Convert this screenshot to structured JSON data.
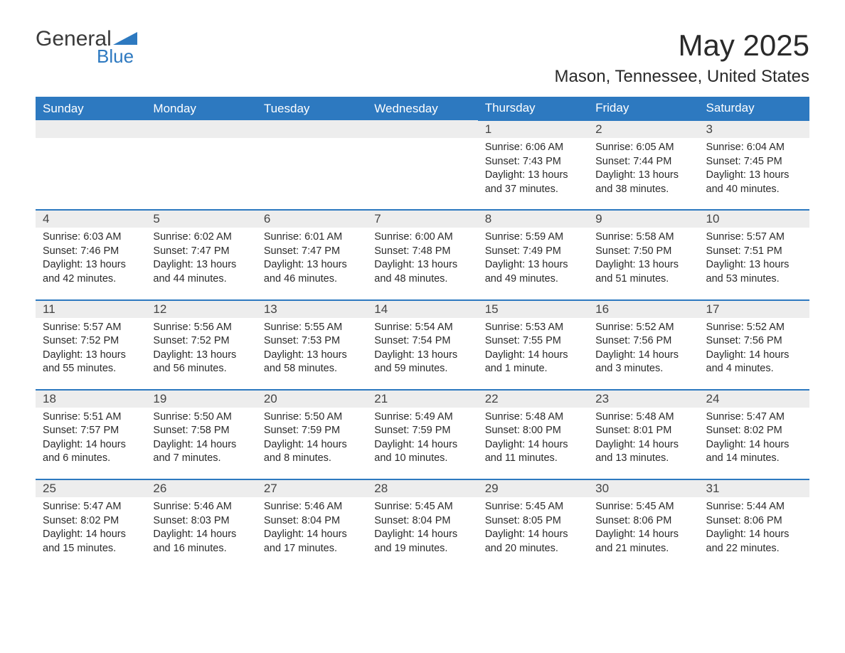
{
  "logo": {
    "word1": "General",
    "word2": "Blue",
    "accent_color": "#2d79c0"
  },
  "title": "May 2025",
  "location": "Mason, Tennessee, United States",
  "header_bg": "#2d79c0",
  "header_fg": "#ffffff",
  "daynum_bg": "#ededed",
  "border_color": "#2d79c0",
  "page_bg": "#ffffff",
  "text_color": "#2a2a2a",
  "days_of_week": [
    "Sunday",
    "Monday",
    "Tuesday",
    "Wednesday",
    "Thursday",
    "Friday",
    "Saturday"
  ],
  "weeks": [
    [
      null,
      null,
      null,
      null,
      {
        "n": "1",
        "sunrise": "Sunrise: 6:06 AM",
        "sunset": "Sunset: 7:43 PM",
        "daylight": "Daylight: 13 hours and 37 minutes."
      },
      {
        "n": "2",
        "sunrise": "Sunrise: 6:05 AM",
        "sunset": "Sunset: 7:44 PM",
        "daylight": "Daylight: 13 hours and 38 minutes."
      },
      {
        "n": "3",
        "sunrise": "Sunrise: 6:04 AM",
        "sunset": "Sunset: 7:45 PM",
        "daylight": "Daylight: 13 hours and 40 minutes."
      }
    ],
    [
      {
        "n": "4",
        "sunrise": "Sunrise: 6:03 AM",
        "sunset": "Sunset: 7:46 PM",
        "daylight": "Daylight: 13 hours and 42 minutes."
      },
      {
        "n": "5",
        "sunrise": "Sunrise: 6:02 AM",
        "sunset": "Sunset: 7:47 PM",
        "daylight": "Daylight: 13 hours and 44 minutes."
      },
      {
        "n": "6",
        "sunrise": "Sunrise: 6:01 AM",
        "sunset": "Sunset: 7:47 PM",
        "daylight": "Daylight: 13 hours and 46 minutes."
      },
      {
        "n": "7",
        "sunrise": "Sunrise: 6:00 AM",
        "sunset": "Sunset: 7:48 PM",
        "daylight": "Daylight: 13 hours and 48 minutes."
      },
      {
        "n": "8",
        "sunrise": "Sunrise: 5:59 AM",
        "sunset": "Sunset: 7:49 PM",
        "daylight": "Daylight: 13 hours and 49 minutes."
      },
      {
        "n": "9",
        "sunrise": "Sunrise: 5:58 AM",
        "sunset": "Sunset: 7:50 PM",
        "daylight": "Daylight: 13 hours and 51 minutes."
      },
      {
        "n": "10",
        "sunrise": "Sunrise: 5:57 AM",
        "sunset": "Sunset: 7:51 PM",
        "daylight": "Daylight: 13 hours and 53 minutes."
      }
    ],
    [
      {
        "n": "11",
        "sunrise": "Sunrise: 5:57 AM",
        "sunset": "Sunset: 7:52 PM",
        "daylight": "Daylight: 13 hours and 55 minutes."
      },
      {
        "n": "12",
        "sunrise": "Sunrise: 5:56 AM",
        "sunset": "Sunset: 7:52 PM",
        "daylight": "Daylight: 13 hours and 56 minutes."
      },
      {
        "n": "13",
        "sunrise": "Sunrise: 5:55 AM",
        "sunset": "Sunset: 7:53 PM",
        "daylight": "Daylight: 13 hours and 58 minutes."
      },
      {
        "n": "14",
        "sunrise": "Sunrise: 5:54 AM",
        "sunset": "Sunset: 7:54 PM",
        "daylight": "Daylight: 13 hours and 59 minutes."
      },
      {
        "n": "15",
        "sunrise": "Sunrise: 5:53 AM",
        "sunset": "Sunset: 7:55 PM",
        "daylight": "Daylight: 14 hours and 1 minute."
      },
      {
        "n": "16",
        "sunrise": "Sunrise: 5:52 AM",
        "sunset": "Sunset: 7:56 PM",
        "daylight": "Daylight: 14 hours and 3 minutes."
      },
      {
        "n": "17",
        "sunrise": "Sunrise: 5:52 AM",
        "sunset": "Sunset: 7:56 PM",
        "daylight": "Daylight: 14 hours and 4 minutes."
      }
    ],
    [
      {
        "n": "18",
        "sunrise": "Sunrise: 5:51 AM",
        "sunset": "Sunset: 7:57 PM",
        "daylight": "Daylight: 14 hours and 6 minutes."
      },
      {
        "n": "19",
        "sunrise": "Sunrise: 5:50 AM",
        "sunset": "Sunset: 7:58 PM",
        "daylight": "Daylight: 14 hours and 7 minutes."
      },
      {
        "n": "20",
        "sunrise": "Sunrise: 5:50 AM",
        "sunset": "Sunset: 7:59 PM",
        "daylight": "Daylight: 14 hours and 8 minutes."
      },
      {
        "n": "21",
        "sunrise": "Sunrise: 5:49 AM",
        "sunset": "Sunset: 7:59 PM",
        "daylight": "Daylight: 14 hours and 10 minutes."
      },
      {
        "n": "22",
        "sunrise": "Sunrise: 5:48 AM",
        "sunset": "Sunset: 8:00 PM",
        "daylight": "Daylight: 14 hours and 11 minutes."
      },
      {
        "n": "23",
        "sunrise": "Sunrise: 5:48 AM",
        "sunset": "Sunset: 8:01 PM",
        "daylight": "Daylight: 14 hours and 13 minutes."
      },
      {
        "n": "24",
        "sunrise": "Sunrise: 5:47 AM",
        "sunset": "Sunset: 8:02 PM",
        "daylight": "Daylight: 14 hours and 14 minutes."
      }
    ],
    [
      {
        "n": "25",
        "sunrise": "Sunrise: 5:47 AM",
        "sunset": "Sunset: 8:02 PM",
        "daylight": "Daylight: 14 hours and 15 minutes."
      },
      {
        "n": "26",
        "sunrise": "Sunrise: 5:46 AM",
        "sunset": "Sunset: 8:03 PM",
        "daylight": "Daylight: 14 hours and 16 minutes."
      },
      {
        "n": "27",
        "sunrise": "Sunrise: 5:46 AM",
        "sunset": "Sunset: 8:04 PM",
        "daylight": "Daylight: 14 hours and 17 minutes."
      },
      {
        "n": "28",
        "sunrise": "Sunrise: 5:45 AM",
        "sunset": "Sunset: 8:04 PM",
        "daylight": "Daylight: 14 hours and 19 minutes."
      },
      {
        "n": "29",
        "sunrise": "Sunrise: 5:45 AM",
        "sunset": "Sunset: 8:05 PM",
        "daylight": "Daylight: 14 hours and 20 minutes."
      },
      {
        "n": "30",
        "sunrise": "Sunrise: 5:45 AM",
        "sunset": "Sunset: 8:06 PM",
        "daylight": "Daylight: 14 hours and 21 minutes."
      },
      {
        "n": "31",
        "sunrise": "Sunrise: 5:44 AM",
        "sunset": "Sunset: 8:06 PM",
        "daylight": "Daylight: 14 hours and 22 minutes."
      }
    ]
  ]
}
